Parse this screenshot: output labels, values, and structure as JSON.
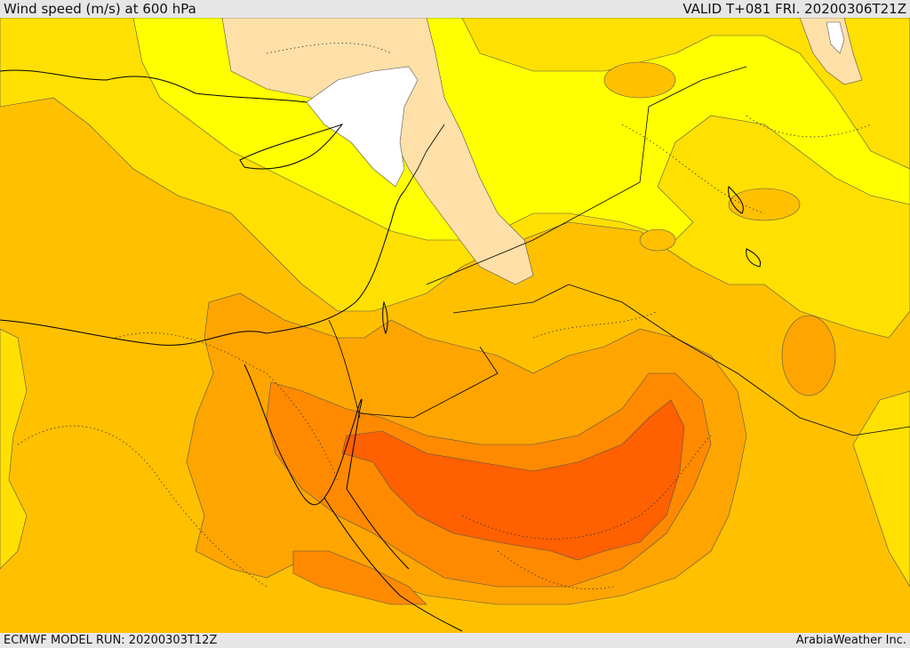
{
  "header": {
    "title": "Wind speed (m/s) at 600 hPa",
    "valid": "VALID T+081 FRI. 20200306T21Z"
  },
  "footer": {
    "model_run": "ECMWF MODEL RUN: 20200303T12Z",
    "credit": "ArabiaWeather Inc."
  },
  "map": {
    "field": "wind speed",
    "level_hpa": 600,
    "colors": {
      "band_0": "#ffffff",
      "band_1": "#ffe0a8",
      "band_2": "#ffff00",
      "band_3": "#ffe000",
      "band_4": "#ffc000",
      "band_5": "#ffa500",
      "band_6": "#ff8a00",
      "band_7": "#ff6e00",
      "band_8": "#ff5c00"
    }
  }
}
